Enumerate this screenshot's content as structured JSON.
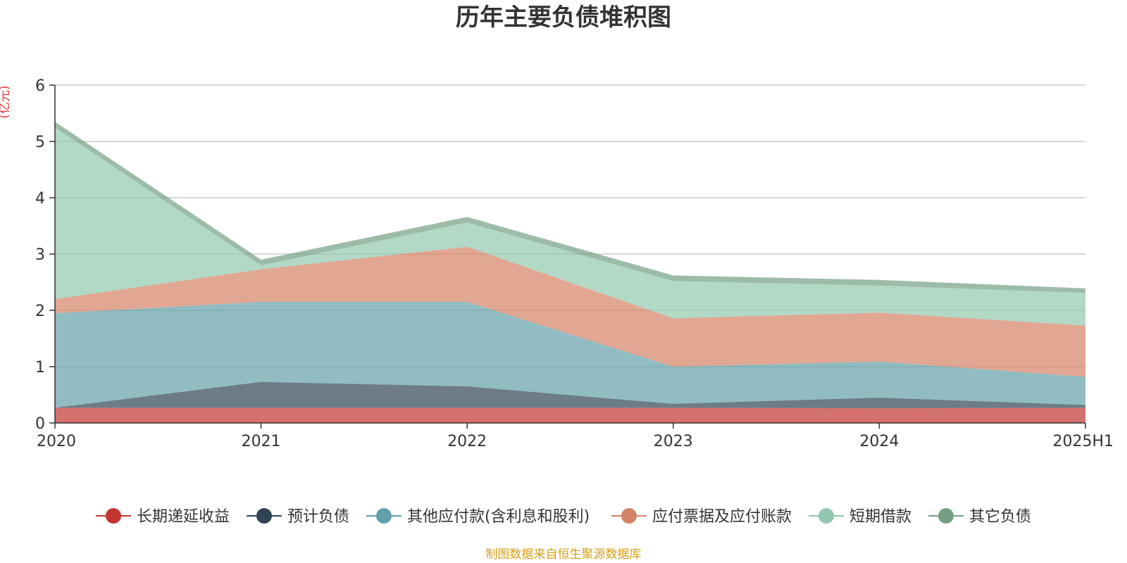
{
  "chart_data": {
    "type": "area",
    "stacked": true,
    "title": "历年主要负债堆积图",
    "unit": "(亿元)",
    "source": "制图数据来自恒生聚源数据库",
    "categories": [
      "2020",
      "2021",
      "2022",
      "2023",
      "2024",
      "2025H1"
    ],
    "ylim": [
      0,
      6
    ],
    "yticks": [
      "0",
      "1",
      "2",
      "3",
      "4",
      "5",
      "6"
    ],
    "grid": true,
    "legend_position": "bottom",
    "series": [
      {
        "name": "长期递延收益",
        "color": "#c23531",
        "values": [
          0.27,
          0.27,
          0.27,
          0.27,
          0.26,
          0.27
        ]
      },
      {
        "name": "预计负债",
        "color": "#2f4554",
        "values": [
          0.0,
          0.46,
          0.38,
          0.07,
          0.19,
          0.05
        ]
      },
      {
        "name": "其他应付款(含利息和股利)",
        "color": "#61a0a8",
        "values": [
          1.68,
          1.42,
          1.5,
          0.66,
          0.64,
          0.5
        ]
      },
      {
        "name": "应付票据及应付账款",
        "color": "#d48265",
        "values": [
          0.25,
          0.58,
          0.98,
          0.86,
          0.87,
          0.91
        ]
      },
      {
        "name": "短期借款",
        "color": "#91c7ae",
        "values": [
          3.05,
          0.07,
          0.43,
          0.66,
          0.48,
          0.58
        ]
      },
      {
        "name": "其它负债",
        "color": "#749f83",
        "values": [
          0.1,
          0.1,
          0.1,
          0.1,
          0.1,
          0.08
        ]
      }
    ]
  }
}
